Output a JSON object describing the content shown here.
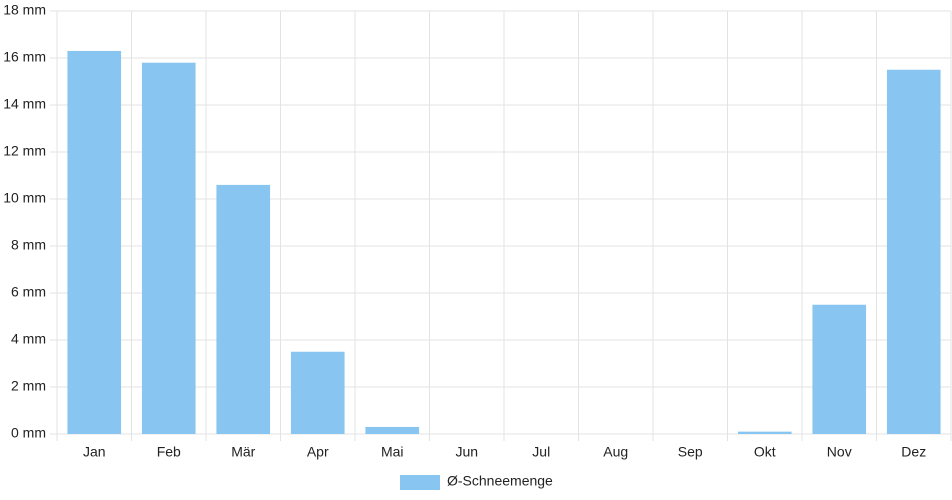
{
  "chart_data": {
    "type": "bar",
    "categories": [
      "Jan",
      "Feb",
      "Mär",
      "Apr",
      "Mai",
      "Jun",
      "Jul",
      "Aug",
      "Sep",
      "Okt",
      "Nov",
      "Dez"
    ],
    "series": [
      {
        "name": "Ø-Schneemenge",
        "color": "#88c6f1",
        "values": [
          16.3,
          15.8,
          10.6,
          3.5,
          0.3,
          0,
          0,
          0,
          0,
          0.1,
          5.5,
          15.5
        ]
      }
    ],
    "ylim": [
      0,
      18
    ],
    "yticks": [
      {
        "value": 0,
        "label": "0 mm"
      },
      {
        "value": 2,
        "label": "2 mm"
      },
      {
        "value": 4,
        "label": "4 mm"
      },
      {
        "value": 6,
        "label": "6 mm"
      },
      {
        "value": 8,
        "label": "8 mm"
      },
      {
        "value": 10,
        "label": "10 mm"
      },
      {
        "value": 12,
        "label": "12 mm"
      },
      {
        "value": 14,
        "label": "14 mm"
      },
      {
        "value": 16,
        "label": "16 mm"
      },
      {
        "value": 18,
        "label": "18 mm"
      }
    ],
    "grid": true,
    "legend": "bottom"
  }
}
